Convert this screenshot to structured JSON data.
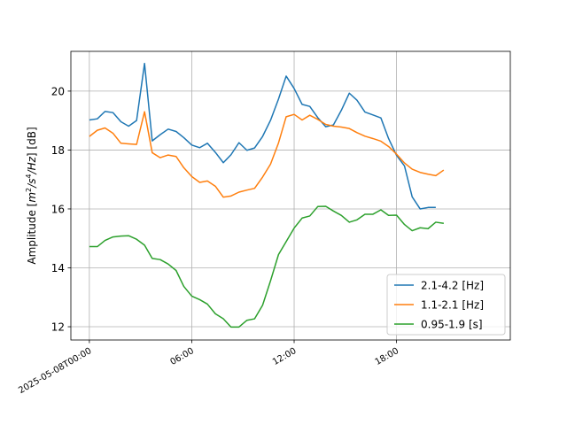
{
  "chart_data": {
    "type": "line",
    "title": "",
    "xlabel": "",
    "ylabel": "Amplitude [m²/s⁴/Hz] [dB]",
    "ylabel_parts": {
      "prefix": "Amplitude [",
      "m": "m",
      "sup2": "2",
      "slash_s": "/s",
      "sup4": "4",
      "slash_hz": "/Hz",
      "suffix": "] [dB]"
    },
    "x_ticks": [
      {
        "hour": 0,
        "label": "2025-05-08T00:00"
      },
      {
        "hour": 6,
        "label": "06:00"
      },
      {
        "hour": 12,
        "label": "12:00"
      },
      {
        "hour": 18,
        "label": "18:00"
      }
    ],
    "y_ticks": [
      12,
      14,
      16,
      18,
      20
    ],
    "x_range": [
      "2025-05-07T22:55",
      "2025-05-09T00:40"
    ],
    "ylim": [
      11.55,
      21.35
    ],
    "grid": true,
    "legend_position": "lower-right",
    "x": [
      "2025-05-08T00:00",
      "2025-05-08T00:28",
      "2025-05-08T00:55",
      "2025-05-08T01:23",
      "2025-05-08T01:51",
      "2025-05-08T02:18",
      "2025-05-08T02:46",
      "2025-05-08T03:14",
      "2025-05-08T03:41",
      "2025-05-08T04:09",
      "2025-05-08T04:37",
      "2025-05-08T05:05",
      "2025-05-08T05:32",
      "2025-05-08T06:00",
      "2025-05-08T06:28",
      "2025-05-08T06:55",
      "2025-05-08T07:23",
      "2025-05-08T07:51",
      "2025-05-08T08:18",
      "2025-05-08T08:46",
      "2025-05-08T09:14",
      "2025-05-08T09:41",
      "2025-05-08T10:09",
      "2025-05-08T10:37",
      "2025-05-08T11:05",
      "2025-05-08T11:32",
      "2025-05-08T12:00",
      "2025-05-08T12:28",
      "2025-05-08T12:55",
      "2025-05-08T13:23",
      "2025-05-08T13:51",
      "2025-05-08T14:18",
      "2025-05-08T14:46",
      "2025-05-08T15:14",
      "2025-05-08T15:41",
      "2025-05-08T16:09",
      "2025-05-08T16:37",
      "2025-05-08T17:05",
      "2025-05-08T17:32",
      "2025-05-08T18:00",
      "2025-05-08T18:28",
      "2025-05-08T18:55",
      "2025-05-08T19:23",
      "2025-05-08T19:51",
      "2025-05-08T20:18",
      "2025-05-08T20:46",
      "2025-05-08T21:14",
      "2025-05-08T21:41",
      "2025-05-08T22:09",
      "2025-05-08T22:37"
    ],
    "series": [
      {
        "name": "2.1-4.2 [Hz]",
        "color": "#1f77b4",
        "values": [
          19.02,
          19.06,
          19.31,
          19.27,
          18.96,
          18.81,
          19.0,
          20.94,
          18.31,
          18.52,
          18.71,
          18.63,
          18.42,
          18.17,
          18.08,
          18.23,
          17.92,
          17.57,
          17.84,
          18.25,
          17.99,
          18.07,
          18.46,
          19.01,
          19.73,
          20.51,
          20.09,
          19.55,
          19.48,
          19.1,
          18.79,
          18.85,
          19.35,
          19.93,
          19.69,
          19.29,
          19.19,
          19.09,
          18.39,
          17.82,
          17.46,
          16.41,
          16.0,
          16.05,
          16.05,
          null,
          null,
          null,
          null,
          null
        ]
      },
      {
        "name": "1.1-2.1 [Hz]",
        "color": "#ff7f0e",
        "values": [
          18.46,
          18.67,
          18.75,
          18.57,
          18.23,
          18.21,
          18.19,
          19.3,
          17.91,
          17.74,
          17.83,
          17.78,
          17.4,
          17.1,
          16.9,
          16.95,
          16.77,
          16.4,
          16.44,
          16.57,
          16.64,
          16.7,
          17.08,
          17.52,
          18.24,
          19.13,
          19.21,
          19.02,
          19.18,
          19.04,
          18.87,
          18.81,
          18.78,
          18.73,
          18.59,
          18.47,
          18.39,
          18.3,
          18.12,
          17.86,
          17.56,
          17.35,
          17.24,
          17.18,
          17.13,
          17.32,
          null,
          null,
          null,
          null
        ]
      },
      {
        "name": "0.95-1.9 [s]",
        "color": "#2ca02c",
        "values": [
          14.72,
          14.72,
          14.93,
          15.05,
          15.08,
          15.09,
          14.97,
          14.77,
          14.32,
          14.28,
          14.13,
          13.91,
          13.37,
          13.04,
          12.92,
          12.77,
          12.44,
          12.27,
          11.99,
          11.99,
          12.22,
          12.27,
          12.73,
          13.56,
          14.45,
          14.89,
          15.35,
          15.69,
          15.76,
          16.08,
          16.09,
          15.93,
          15.78,
          15.55,
          15.63,
          15.82,
          15.82,
          15.97,
          15.78,
          15.79,
          15.47,
          15.26,
          15.36,
          15.33,
          15.55,
          15.51,
          null,
          null,
          null,
          null
        ]
      }
    ]
  }
}
